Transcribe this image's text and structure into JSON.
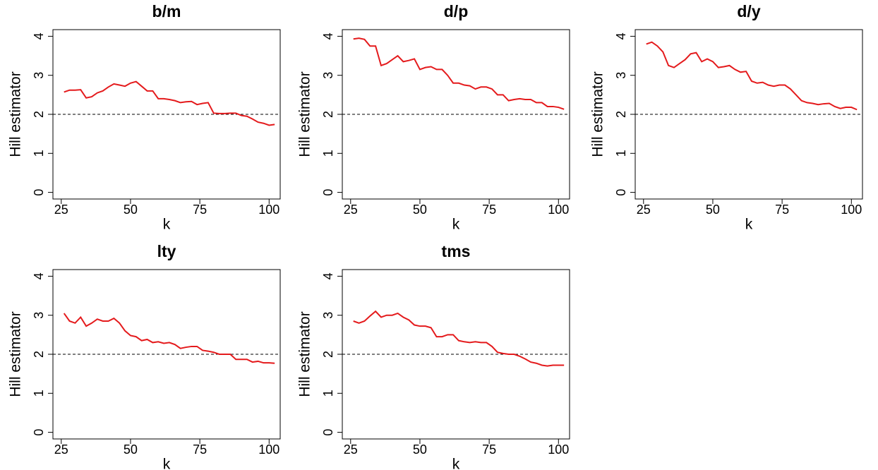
{
  "chart_data": [
    {
      "type": "line",
      "title": "b/m",
      "x_label": "k",
      "y_label": "Hill estimator",
      "color": "#e41a1c",
      "reference_line": 2,
      "x": [
        26,
        28,
        30,
        32,
        34,
        36,
        38,
        40,
        42,
        44,
        46,
        48,
        50,
        52,
        54,
        56,
        58,
        60,
        62,
        64,
        66,
        68,
        70,
        72,
        74,
        76,
        78,
        80,
        82,
        84,
        86,
        88,
        90,
        92,
        94,
        96,
        98,
        100,
        102
      ],
      "values": [
        2.57,
        2.62,
        2.62,
        2.63,
        2.42,
        2.45,
        2.55,
        2.6,
        2.7,
        2.78,
        2.75,
        2.72,
        2.8,
        2.84,
        2.72,
        2.6,
        2.6,
        2.4,
        2.4,
        2.38,
        2.35,
        2.3,
        2.32,
        2.33,
        2.25,
        2.28,
        2.3,
        2.03,
        2.02,
        2.02,
        2.03,
        2.03,
        1.97,
        1.95,
        1.88,
        1.8,
        1.77,
        1.72,
        1.74
      ],
      "xlim": [
        22,
        104
      ],
      "ylim": [
        -0.17,
        4.17
      ],
      "xticks": [
        25,
        50,
        75,
        100
      ],
      "yticks": [
        0,
        1,
        2,
        3,
        4
      ]
    },
    {
      "type": "line",
      "title": "d/p",
      "x_label": "k",
      "y_label": "Hill estimator",
      "color": "#e41a1c",
      "reference_line": 2,
      "x": [
        26,
        28,
        30,
        32,
        34,
        36,
        38,
        40,
        42,
        44,
        46,
        48,
        50,
        52,
        54,
        56,
        58,
        60,
        62,
        64,
        66,
        68,
        70,
        72,
        74,
        76,
        78,
        80,
        82,
        84,
        86,
        88,
        90,
        92,
        94,
        96,
        98,
        100,
        102
      ],
      "values": [
        3.93,
        3.95,
        3.92,
        3.75,
        3.75,
        3.25,
        3.3,
        3.4,
        3.5,
        3.35,
        3.38,
        3.42,
        3.15,
        3.2,
        3.22,
        3.15,
        3.15,
        3.0,
        2.8,
        2.8,
        2.75,
        2.73,
        2.65,
        2.7,
        2.7,
        2.65,
        2.5,
        2.5,
        2.35,
        2.38,
        2.4,
        2.38,
        2.38,
        2.3,
        2.3,
        2.2,
        2.2,
        2.18,
        2.13
      ],
      "xlim": [
        22,
        104
      ],
      "ylim": [
        -0.17,
        4.17
      ],
      "xticks": [
        25,
        50,
        75,
        100
      ],
      "yticks": [
        0,
        1,
        2,
        3,
        4
      ]
    },
    {
      "type": "line",
      "title": "d/y",
      "x_label": "k",
      "y_label": "Hill estimator",
      "color": "#e41a1c",
      "reference_line": 2,
      "x": [
        26,
        28,
        30,
        32,
        34,
        36,
        38,
        40,
        42,
        44,
        46,
        48,
        50,
        52,
        54,
        56,
        58,
        60,
        62,
        64,
        66,
        68,
        70,
        72,
        74,
        76,
        78,
        80,
        82,
        84,
        86,
        88,
        90,
        92,
        94,
        96,
        98,
        100,
        102
      ],
      "values": [
        3.8,
        3.85,
        3.75,
        3.6,
        3.25,
        3.2,
        3.3,
        3.4,
        3.55,
        3.58,
        3.35,
        3.42,
        3.35,
        3.2,
        3.22,
        3.25,
        3.15,
        3.08,
        3.1,
        2.85,
        2.8,
        2.82,
        2.75,
        2.72,
        2.75,
        2.75,
        2.65,
        2.5,
        2.35,
        2.3,
        2.28,
        2.25,
        2.27,
        2.28,
        2.2,
        2.15,
        2.18,
        2.18,
        2.12
      ],
      "xlim": [
        22,
        104
      ],
      "ylim": [
        -0.17,
        4.17
      ],
      "xticks": [
        25,
        50,
        75,
        100
      ],
      "yticks": [
        0,
        1,
        2,
        3,
        4
      ]
    },
    {
      "type": "line",
      "title": "lty",
      "x_label": "k",
      "y_label": "Hill estimator",
      "color": "#e41a1c",
      "reference_line": 2,
      "x": [
        26,
        28,
        30,
        32,
        34,
        36,
        38,
        40,
        42,
        44,
        46,
        48,
        50,
        52,
        54,
        56,
        58,
        60,
        62,
        64,
        66,
        68,
        70,
        72,
        74,
        76,
        78,
        80,
        82,
        84,
        86,
        88,
        90,
        92,
        94,
        96,
        98,
        100,
        102
      ],
      "values": [
        3.05,
        2.85,
        2.8,
        2.95,
        2.72,
        2.8,
        2.9,
        2.85,
        2.85,
        2.92,
        2.8,
        2.6,
        2.48,
        2.45,
        2.35,
        2.38,
        2.3,
        2.32,
        2.28,
        2.3,
        2.25,
        2.15,
        2.18,
        2.2,
        2.2,
        2.1,
        2.08,
        2.05,
        2.0,
        2.0,
        2.0,
        1.87,
        1.87,
        1.87,
        1.8,
        1.82,
        1.78,
        1.78,
        1.77
      ],
      "xlim": [
        22,
        104
      ],
      "ylim": [
        -0.17,
        4.17
      ],
      "xticks": [
        25,
        50,
        75,
        100
      ],
      "yticks": [
        0,
        1,
        2,
        3,
        4
      ]
    },
    {
      "type": "line",
      "title": "tms",
      "x_label": "k",
      "y_label": "Hill estimator",
      "color": "#e41a1c",
      "reference_line": 2,
      "x": [
        26,
        28,
        30,
        32,
        34,
        36,
        38,
        40,
        42,
        44,
        46,
        48,
        50,
        52,
        54,
        56,
        58,
        60,
        62,
        64,
        66,
        68,
        70,
        72,
        74,
        76,
        78,
        80,
        82,
        84,
        86,
        88,
        90,
        92,
        94,
        96,
        98,
        100,
        102
      ],
      "values": [
        2.85,
        2.8,
        2.85,
        2.98,
        3.1,
        2.95,
        3.0,
        3.0,
        3.05,
        2.95,
        2.88,
        2.75,
        2.72,
        2.72,
        2.68,
        2.45,
        2.45,
        2.5,
        2.5,
        2.35,
        2.32,
        2.3,
        2.32,
        2.3,
        2.3,
        2.2,
        2.05,
        2.02,
        2.0,
        2.0,
        1.95,
        1.88,
        1.8,
        1.77,
        1.72,
        1.7,
        1.72,
        1.72,
        1.72
      ],
      "xlim": [
        22,
        104
      ],
      "ylim": [
        -0.17,
        4.17
      ],
      "xticks": [
        25,
        50,
        75,
        100
      ],
      "yticks": [
        0,
        1,
        2,
        3,
        4
      ]
    }
  ]
}
